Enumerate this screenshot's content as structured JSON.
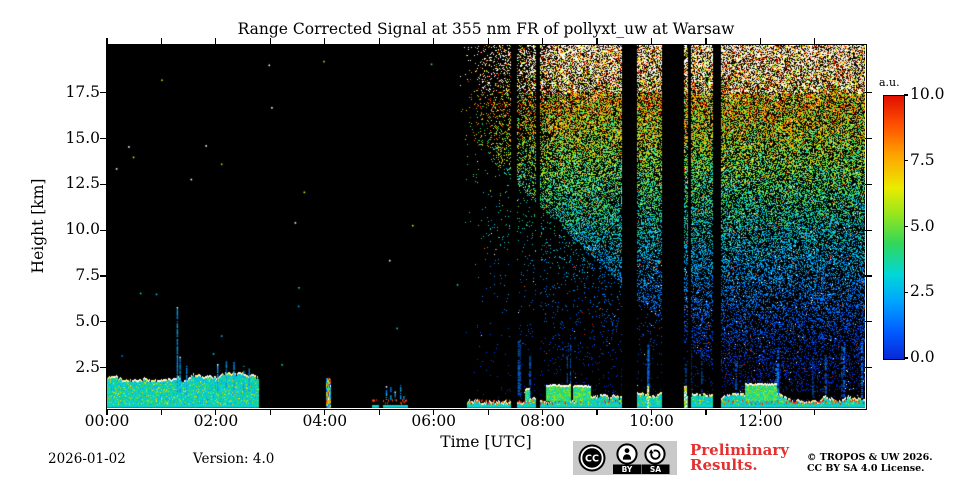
{
  "title": "Range Corrected Signal at 355 nm FR of pollyxt_uw at Warsaw",
  "axes": {
    "xlabel": "Time [UTC]",
    "ylabel": "Height [km]",
    "x_major_ticks": [
      {
        "hour": 0,
        "label": "00:00"
      },
      {
        "hour": 2,
        "label": "02:00"
      },
      {
        "hour": 4,
        "label": "04:00"
      },
      {
        "hour": 6,
        "label": "06:00"
      },
      {
        "hour": 8,
        "label": "08:00"
      },
      {
        "hour": 10,
        "label": "10:00"
      },
      {
        "hour": 12,
        "label": "12:00"
      }
    ],
    "x_minor_tick_every_hours": 1,
    "y_major_ticks": [
      {
        "km": 2.5,
        "label": "2.5"
      },
      {
        "km": 5.0,
        "label": "5.0"
      },
      {
        "km": 7.5,
        "label": "7.5"
      },
      {
        "km": 10.0,
        "label": "10.0"
      },
      {
        "km": 12.5,
        "label": "12.5"
      },
      {
        "km": 15.0,
        "label": "15.0"
      },
      {
        "km": 17.5,
        "label": "17.5"
      }
    ]
  },
  "colorbar": {
    "label": "a.u.",
    "ticks": [
      {
        "value": 0,
        "label": "0.0"
      },
      {
        "value": 2.5,
        "label": "2.5"
      },
      {
        "value": 5,
        "label": "5.0"
      },
      {
        "value": 7.5,
        "label": "7.5"
      },
      {
        "value": 10,
        "label": "10.0"
      }
    ],
    "vmin": 0,
    "vmax": 10
  },
  "footer": {
    "date": "2026-01-02",
    "version": "Version: 4.0",
    "preliminary": [
      "Preliminary",
      "Results."
    ],
    "copyright": [
      "© TROPOS & UW 2026.",
      "CC BY SA 4.0 License."
    ],
    "cc_badge": {
      "cc": "CC",
      "by": "BY",
      "sa": "SA"
    },
    "preliminary_color": "#e53030"
  },
  "chart_data": {
    "type": "heatmap",
    "title": "Range Corrected Signal at 355 nm FR of pollyxt_uw at Warsaw",
    "xlabel": "Time [UTC]",
    "ylabel": "Height [km]",
    "value_label": "a.u.",
    "x_range_hours": [
      0,
      13.92
    ],
    "y_range_km": [
      0.3,
      20.1
    ],
    "value_range": [
      0,
      10
    ],
    "background": "#000000",
    "over_color": "#ffffff",
    "colormap_stops": [
      {
        "p": 0.0,
        "rgb": [
          8,
          40,
          215
        ]
      },
      {
        "p": 0.1,
        "rgb": [
          0,
          90,
          255
        ]
      },
      {
        "p": 0.22,
        "rgb": [
          0,
          165,
          255
        ]
      },
      {
        "p": 0.32,
        "rgb": [
          0,
          215,
          215
        ]
      },
      {
        "p": 0.44,
        "rgb": [
          50,
          215,
          90
        ]
      },
      {
        "p": 0.55,
        "rgb": [
          150,
          230,
          30
        ]
      },
      {
        "p": 0.65,
        "rgb": [
          235,
          235,
          0
        ]
      },
      {
        "p": 0.78,
        "rgb": [
          255,
          160,
          0
        ]
      },
      {
        "p": 0.89,
        "rgb": [
          255,
          80,
          0
        ]
      },
      {
        "p": 1.0,
        "rgb": [
          225,
          15,
          0
        ]
      }
    ],
    "seed": 1234,
    "noise_field": {
      "start_hour": 6.45,
      "ramp_hours": 1.9,
      "comment": "range-corrected background noise: blue at low altitude grading to green, orange, red and saturated white near 20 km; density grows with height and with time after 06:30 UTC"
    },
    "sparse_dots_before_noise": 26,
    "blue_streaks": {
      "count": 28,
      "t_min": 6.7,
      "t_max": 13.9,
      "top_km_min": 1.5,
      "top_km_max": 4.2
    },
    "aerosol_layers": [
      {
        "t0": 0.0,
        "t1": 2.78,
        "top_km": 2.0,
        "top_var_km": 0.22,
        "white_top": true,
        "red_bottom": false,
        "spikes": [
          [
            1.28,
            5.8
          ],
          [
            1.33,
            3.1
          ],
          [
            1.45,
            2.6
          ],
          [
            2.02,
            2.7
          ],
          [
            2.18,
            2.9
          ],
          [
            2.32,
            2.8
          ],
          [
            2.5,
            2.6
          ],
          [
            2.6,
            2.5
          ]
        ],
        "clouds": [],
        "bright_cols": [],
        "column": false
      },
      {
        "t0": 4.04,
        "t1": 4.11,
        "top_km": 1.9,
        "top_var_km": 0.05,
        "white_top": false,
        "red_bottom": false,
        "spikes": [],
        "clouds": [],
        "bright_cols": [],
        "column": true
      },
      {
        "t0": 4.87,
        "t1": 4.99,
        "top_km": 0.5,
        "top_var_km": 0.15,
        "white_top": false,
        "red_bottom": true,
        "spikes": [],
        "clouds": [],
        "bright_cols": [],
        "column": false
      },
      {
        "t0": 5.08,
        "t1": 5.52,
        "top_km": 0.55,
        "top_var_km": 0.25,
        "white_top": false,
        "red_bottom": true,
        "spikes": [
          [
            5.12,
            1.5
          ],
          [
            5.2,
            1.6
          ],
          [
            5.28,
            1.2
          ],
          [
            5.38,
            1.55
          ],
          [
            5.44,
            1.0
          ]
        ],
        "clouds": [],
        "bright_cols": [],
        "column": false
      },
      {
        "t0": 6.62,
        "t1": 9.45,
        "top_km": 0.78,
        "top_var_km": 0.28,
        "white_top": true,
        "red_bottom": true,
        "spikes": [],
        "clouds": [
          [
            7.68,
            7.76,
            1.35
          ],
          [
            8.07,
            8.52,
            1.55
          ],
          [
            8.56,
            8.87,
            1.5
          ]
        ],
        "bright_cols": [],
        "column": false
      },
      {
        "t0": 9.73,
        "t1": 10.2,
        "top_km": 1.15,
        "top_var_km": 0.2,
        "white_top": true,
        "red_bottom": false,
        "spikes": [],
        "clouds": [],
        "bright_cols": [
          [
            9.92,
            9.945
          ]
        ],
        "column": false
      },
      {
        "t0": 10.59,
        "t1": 11.12,
        "top_km": 0.85,
        "top_var_km": 0.25,
        "white_top": true,
        "red_bottom": false,
        "spikes": [],
        "clouds": [],
        "bright_cols": [
          [
            10.6,
            10.64
          ]
        ],
        "column": false
      },
      {
        "t0": 11.25,
        "t1": 13.92,
        "top_km": 0.85,
        "top_var_km": 0.25,
        "white_top": true,
        "red_bottom": true,
        "spikes": [],
        "clouds": [
          [
            11.72,
            12.3,
            1.62
          ]
        ],
        "bright_cols": [],
        "column": false
      }
    ],
    "instrument_gaps_hours": [
      [
        7.43,
        7.53
      ],
      [
        7.89,
        7.95
      ],
      [
        9.46,
        9.73
      ],
      [
        10.21,
        10.6
      ],
      [
        10.67,
        10.72
      ],
      [
        11.13,
        11.26
      ]
    ]
  }
}
